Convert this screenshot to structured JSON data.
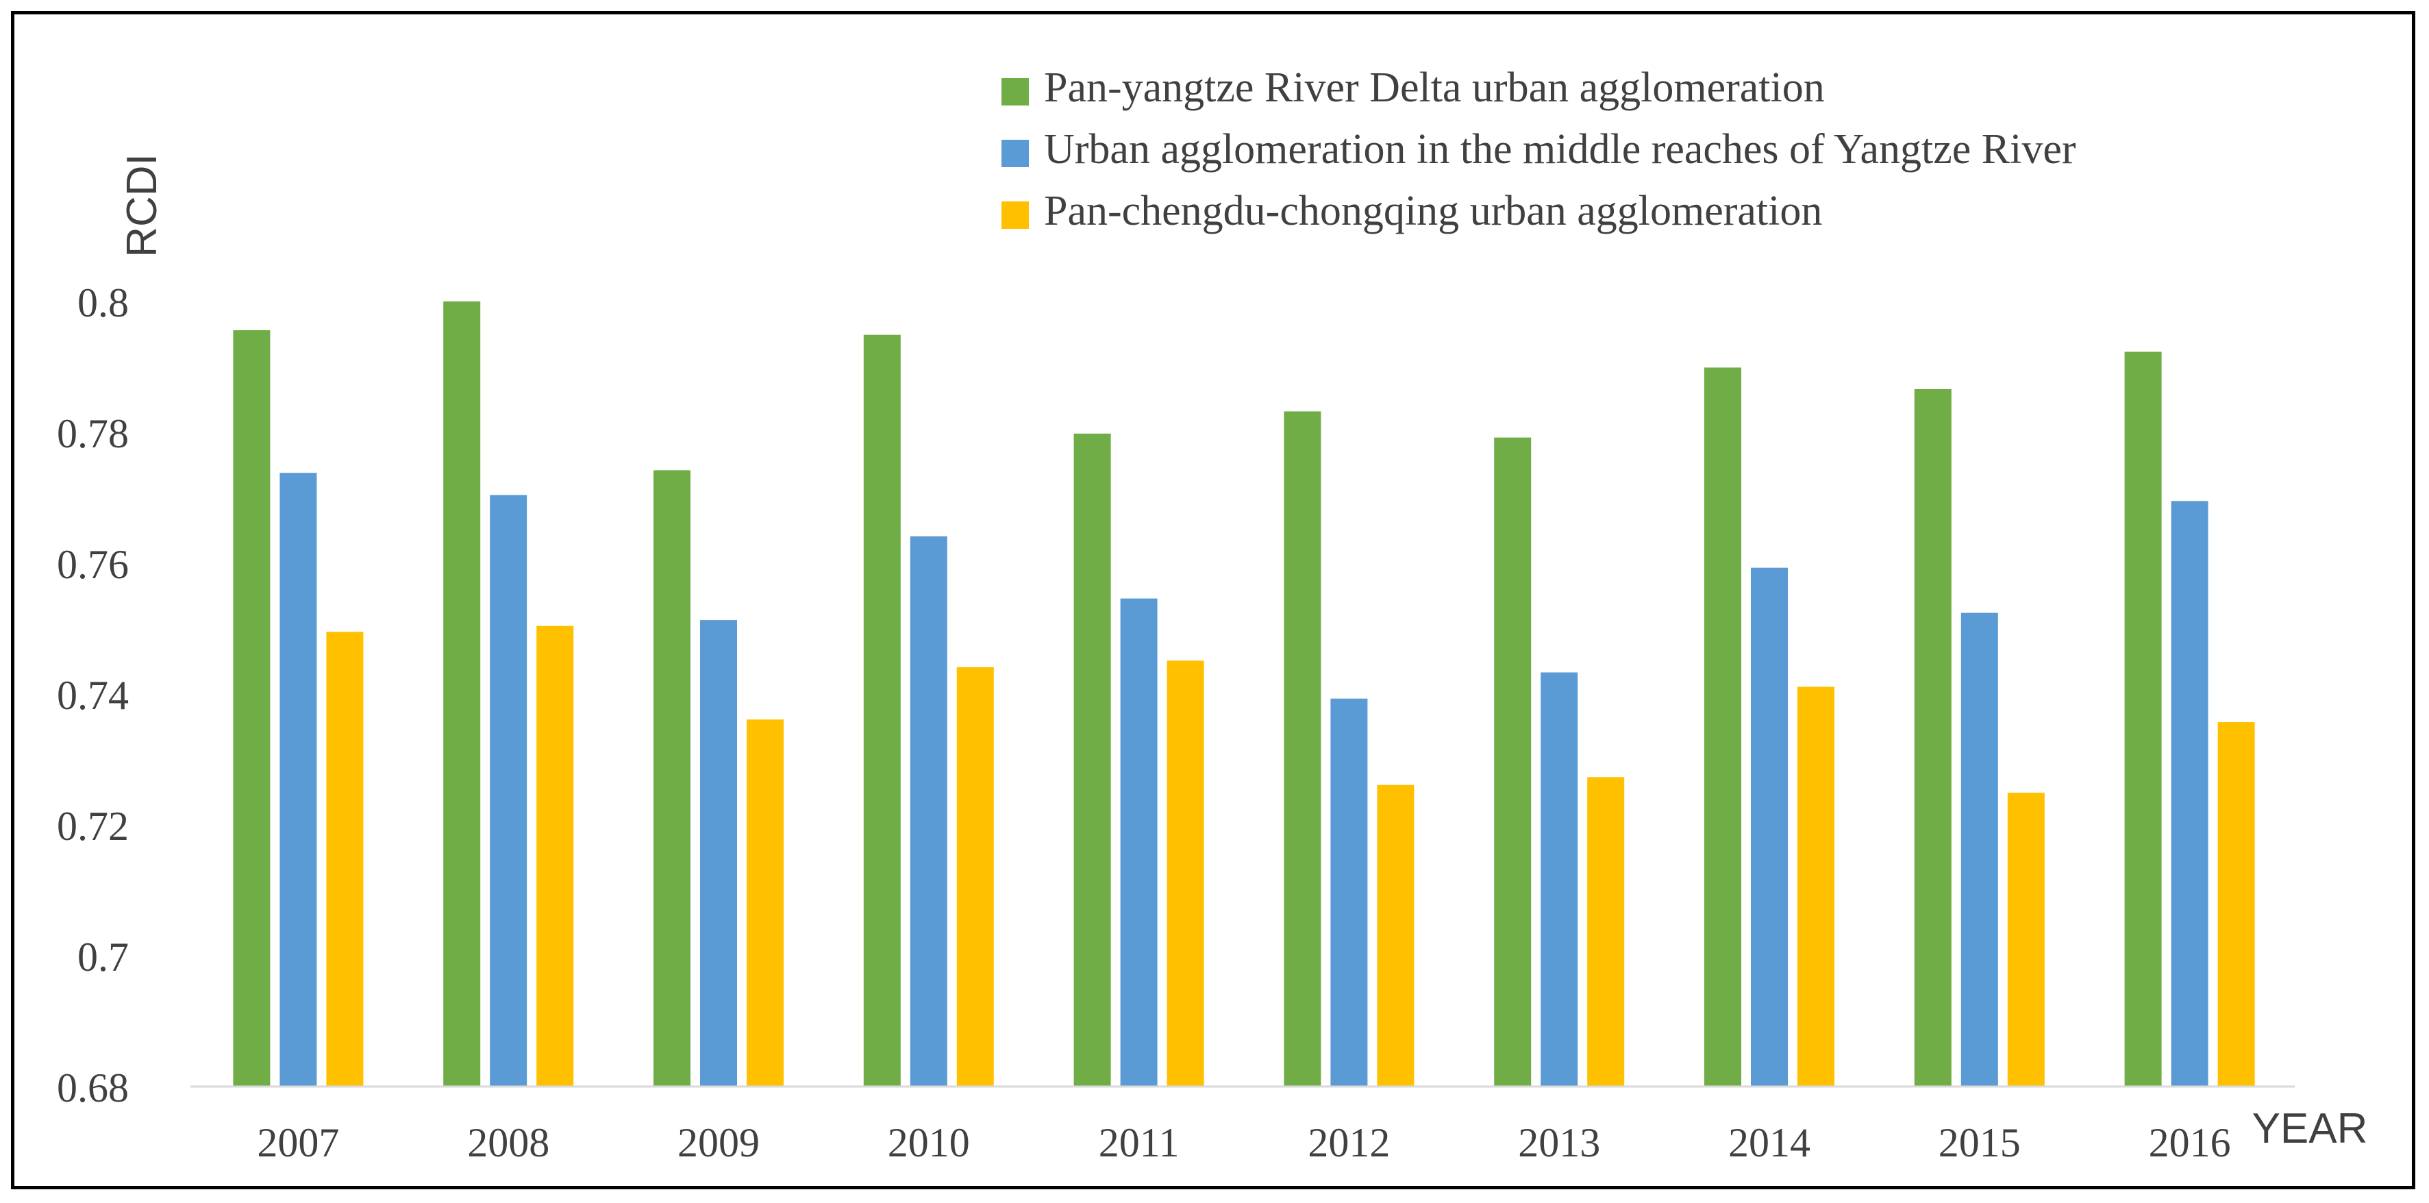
{
  "chart_data": {
    "type": "bar",
    "title": "",
    "xlabel": "YEAR",
    "ylabel": "RCDI",
    "ylim": [
      0.68,
      0.8
    ],
    "yticks": [
      "0.68",
      "0.7",
      "0.72",
      "0.74",
      "0.76",
      "0.78",
      "0.8"
    ],
    "ytick_values": [
      0.68,
      0.7,
      0.72,
      0.74,
      0.76,
      0.78,
      0.8
    ],
    "grid": false,
    "legend_position": "top-right",
    "categories": [
      "2007",
      "2008",
      "2009",
      "2010",
      "2011",
      "2012",
      "2013",
      "2014",
      "2015",
      "2016"
    ],
    "series": [
      {
        "name": "Pan-yangtze River Delta urban agglomeration",
        "color": "#70ad47",
        "values": [
          0.7956,
          0.8,
          0.7742,
          0.7949,
          0.7798,
          0.7832,
          0.7792,
          0.7899,
          0.7866,
          0.7923
        ]
      },
      {
        "name": "Urban agglomeration in the middle reaches of Yangtze River",
        "color": "#5b9bd5",
        "values": [
          0.7738,
          0.7704,
          0.7513,
          0.7641,
          0.7546,
          0.7393,
          0.7433,
          0.7593,
          0.7524,
          0.7695
        ]
      },
      {
        "name": "Pan-chengdu-chongqing urban agglomeration",
        "color": "#ffc000",
        "values": [
          0.7495,
          0.7504,
          0.7361,
          0.7441,
          0.7451,
          0.7261,
          0.7273,
          0.7411,
          0.7249,
          0.7357
        ]
      }
    ]
  }
}
